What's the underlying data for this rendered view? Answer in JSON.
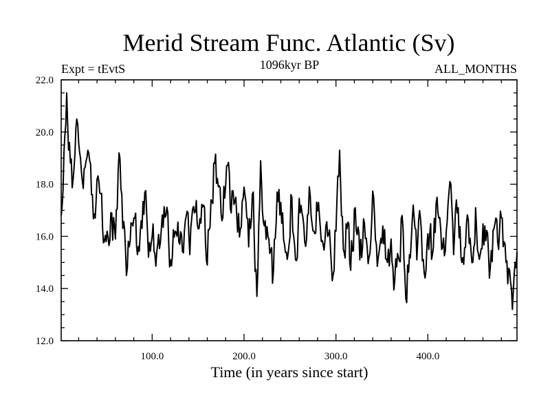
{
  "chart_data": {
    "type": "line",
    "title": "Merid Stream Func. Atlantic (Sv)",
    "subtitle_left": "Expt = tEvtS",
    "subtitle_center": "1096kyr BP",
    "subtitle_right": "ALL_MONTHS",
    "xlabel": "Time (in years since start)",
    "ylabel": "",
    "xlim": [
      1,
      497
    ],
    "ylim": [
      12.0,
      22.0
    ],
    "xticks": [
      100,
      200,
      300,
      400
    ],
    "xtick_labels": [
      "100.0",
      "200.0",
      "300.0",
      "400.0"
    ],
    "yticks": [
      12,
      14,
      16,
      18,
      20,
      22
    ],
    "ytick_labels": [
      "12.0",
      "14.0",
      "16.0",
      "18.0",
      "20.0",
      "22.0"
    ],
    "grid": false,
    "line_color": "#000000",
    "series": [
      {
        "name": "Merid Stream Func. Atlantic",
        "seed": 1096,
        "control_points": [
          [
            1,
            16.8
          ],
          [
            4,
            19.2
          ],
          [
            7,
            21.5
          ],
          [
            10,
            19.6
          ],
          [
            14,
            18.2
          ],
          [
            18,
            20.5
          ],
          [
            22,
            19.0
          ],
          [
            26,
            18.6
          ],
          [
            30,
            19.3
          ],
          [
            34,
            17.6
          ],
          [
            38,
            16.7
          ],
          [
            42,
            18.1
          ],
          [
            46,
            16.3
          ],
          [
            50,
            15.8
          ],
          [
            55,
            16.9
          ],
          [
            60,
            15.9
          ],
          [
            64,
            19.2
          ],
          [
            68,
            16.3
          ],
          [
            72,
            14.5
          ],
          [
            76,
            15.8
          ],
          [
            80,
            16.7
          ],
          [
            84,
            15.3
          ],
          [
            88,
            16.6
          ],
          [
            92,
            17.7
          ],
          [
            96,
            15.2
          ],
          [
            100,
            16.0
          ],
          [
            105,
            15.4
          ],
          [
            110,
            16.3
          ],
          [
            115,
            16.8
          ],
          [
            120,
            15.1
          ],
          [
            125,
            16.2
          ],
          [
            130,
            15.7
          ],
          [
            136,
            16.6
          ],
          [
            141,
            15.3
          ],
          [
            146,
            16.9
          ],
          [
            151,
            16.3
          ],
          [
            156,
            17.2
          ],
          [
            160,
            14.9
          ],
          [
            164,
            17.4
          ],
          [
            168,
            18.8
          ],
          [
            172,
            17.9
          ],
          [
            176,
            16.6
          ],
          [
            181,
            18.7
          ],
          [
            186,
            16.9
          ],
          [
            191,
            17.5
          ],
          [
            196,
            16.3
          ],
          [
            201,
            17.6
          ],
          [
            205,
            15.6
          ],
          [
            210,
            17.7
          ],
          [
            214,
            13.7
          ],
          [
            218,
            18.9
          ],
          [
            222,
            16.4
          ],
          [
            227,
            15.9
          ],
          [
            231,
            14.2
          ],
          [
            236,
            17.7
          ],
          [
            241,
            16.5
          ],
          [
            246,
            15.4
          ],
          [
            251,
            17.6
          ],
          [
            256,
            15.1
          ],
          [
            261,
            16.9
          ],
          [
            266,
            15.8
          ],
          [
            271,
            17.9
          ],
          [
            276,
            16.2
          ],
          [
            281,
            17.3
          ],
          [
            286,
            15.7
          ],
          [
            291,
            16.0
          ],
          [
            296,
            14.3
          ],
          [
            300,
            16.2
          ],
          [
            304,
            19.3
          ],
          [
            308,
            15.5
          ],
          [
            312,
            16.3
          ],
          [
            316,
            14.7
          ],
          [
            321,
            17.1
          ],
          [
            326,
            15.1
          ],
          [
            331,
            16.5
          ],
          [
            336,
            15.2
          ],
          [
            341,
            17.5
          ],
          [
            346,
            15.2
          ],
          [
            351,
            16.4
          ],
          [
            356,
            15.0
          ],
          [
            360,
            15.9
          ],
          [
            364,
            14.3
          ],
          [
            368,
            15.2
          ],
          [
            372,
            16.8
          ],
          [
            376,
            13.6
          ],
          [
            380,
            15.3
          ],
          [
            384,
            17.2
          ],
          [
            388,
            15.1
          ],
          [
            392,
            16.7
          ],
          [
            396,
            14.6
          ],
          [
            400,
            16.1
          ],
          [
            405,
            15.3
          ],
          [
            410,
            17.5
          ],
          [
            415,
            15.5
          ],
          [
            420,
            16.2
          ],
          [
            424,
            18.1
          ],
          [
            428,
            15.3
          ],
          [
            432,
            16.9
          ],
          [
            437,
            15.0
          ],
          [
            442,
            16.5
          ],
          [
            447,
            15.4
          ],
          [
            452,
            17.1
          ],
          [
            457,
            15.3
          ],
          [
            462,
            16.4
          ],
          [
            467,
            14.4
          ],
          [
            472,
            16.3
          ],
          [
            477,
            15.5
          ],
          [
            481,
            16.7
          ],
          [
            485,
            15.0
          ],
          [
            489,
            14.7
          ],
          [
            492,
            13.2
          ],
          [
            494,
            14.6
          ],
          [
            497,
            15.4
          ]
        ]
      }
    ]
  }
}
